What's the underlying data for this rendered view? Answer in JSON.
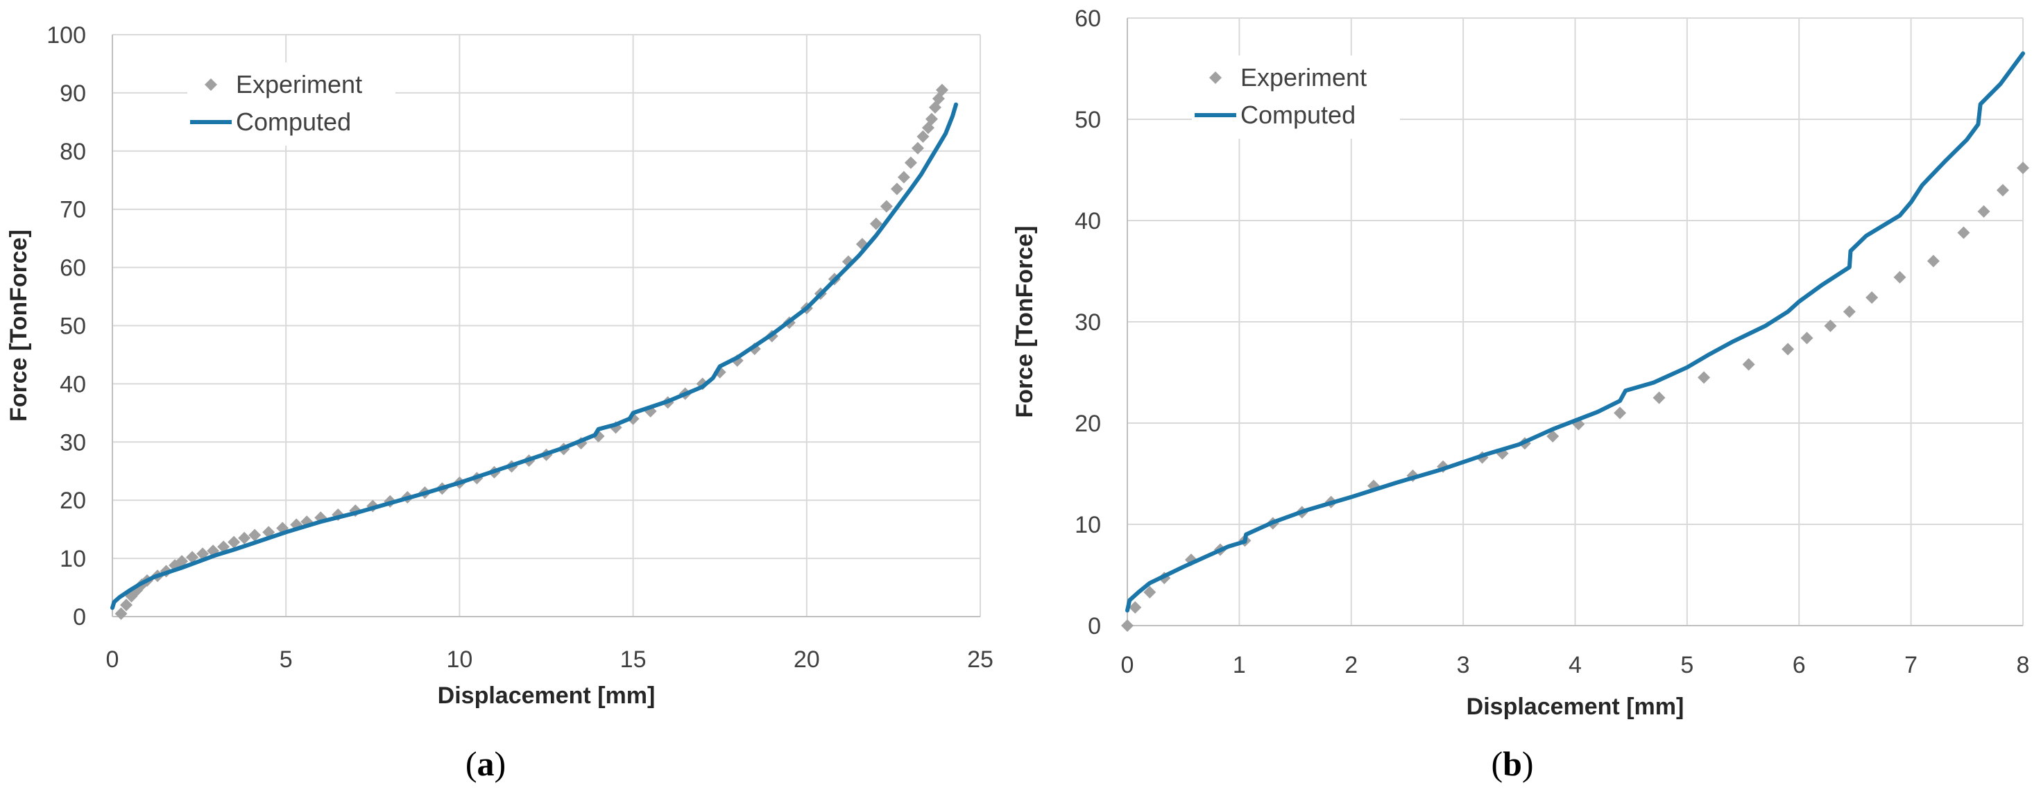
{
  "chart_data": [
    {
      "id": "a",
      "type": "line",
      "caption_open": "(",
      "caption_letter": "a",
      "caption_close": ")",
      "xlabel": "Displacement [mm]",
      "ylabel": "Force [TonForce]",
      "xlim": [
        0,
        25
      ],
      "ylim": [
        0,
        100
      ],
      "xticks": [
        0,
        5,
        10,
        15,
        20,
        25
      ],
      "yticks": [
        0,
        10,
        20,
        30,
        40,
        50,
        60,
        70,
        80,
        90,
        100
      ],
      "grid": true,
      "legend_position": "top-left",
      "series": [
        {
          "name": "Experiment",
          "style": "markers",
          "color": "#a0a0a0",
          "x": [
            0.25,
            0.4,
            0.55,
            0.7,
            0.85,
            1.0,
            1.3,
            1.55,
            1.8,
            2.0,
            2.3,
            2.6,
            2.9,
            3.2,
            3.5,
            3.8,
            4.1,
            4.5,
            4.9,
            5.3,
            5.6,
            6.0,
            6.5,
            7.0,
            7.5,
            8.0,
            8.5,
            9.0,
            9.5,
            10.0,
            10.5,
            11.0,
            11.5,
            12.0,
            12.5,
            13.0,
            13.5,
            14.0,
            14.5,
            15.0,
            15.5,
            16.0,
            16.5,
            17.0,
            17.5,
            18.0,
            18.5,
            19.0,
            19.5,
            20.0,
            20.4,
            20.8,
            21.2,
            21.6,
            22.0,
            22.3,
            22.6,
            22.8,
            23.0,
            23.2,
            23.35,
            23.5,
            23.6,
            23.7,
            23.8,
            23.9
          ],
          "y": [
            0.5,
            2,
            3.5,
            4.5,
            5.5,
            6.2,
            7,
            7.8,
            8.8,
            9.5,
            10.2,
            10.8,
            11.3,
            12,
            12.8,
            13.5,
            14,
            14.5,
            15.2,
            15.8,
            16.3,
            17,
            17.5,
            18.2,
            19,
            19.8,
            20.5,
            21.3,
            22,
            23,
            23.8,
            24.8,
            25.8,
            26.8,
            27.8,
            28.8,
            29.8,
            31,
            32.5,
            34,
            35.3,
            36.8,
            38.3,
            40,
            42,
            44,
            46,
            48.2,
            50.5,
            53,
            55.5,
            58,
            61,
            64,
            67.5,
            70.5,
            73.5,
            75.5,
            78,
            80.5,
            82.5,
            84,
            85.5,
            87.5,
            89,
            90.5
          ]
        },
        {
          "name": "Computed",
          "style": "line",
          "color": "#1a75a8",
          "x": [
            0,
            0.05,
            0.2,
            0.5,
            0.8,
            1.2,
            1.6,
            2.0,
            2.5,
            3.0,
            3.5,
            4.0,
            5.0,
            6.0,
            7.0,
            8.0,
            9.0,
            10.0,
            11.0,
            12.0,
            13.0,
            13.9,
            14.0,
            14.5,
            14.9,
            15.0,
            16.0,
            17.0,
            17.3,
            17.5,
            18.0,
            19.0,
            20.0,
            20.5,
            21.0,
            21.5,
            22.0,
            22.5,
            23.0,
            23.3,
            23.6,
            23.8,
            24.0,
            24.2,
            24.3
          ],
          "y": [
            1.5,
            2.5,
            3.3,
            4.5,
            5.6,
            6.8,
            7.6,
            8.4,
            9.5,
            10.6,
            11.5,
            12.5,
            14.5,
            16.3,
            17.8,
            19.5,
            21.2,
            23.0,
            25.0,
            27.0,
            29.0,
            31.2,
            32.2,
            33.0,
            34.0,
            35.0,
            37.0,
            39.5,
            41.0,
            43.0,
            44.5,
            48.5,
            53.0,
            56.0,
            59.0,
            62.0,
            65.5,
            69.5,
            73.5,
            76.0,
            79.0,
            81.0,
            83.0,
            86.0,
            88.0
          ]
        }
      ]
    },
    {
      "id": "b",
      "type": "line",
      "caption_open": "(",
      "caption_letter": "b",
      "caption_close": ")",
      "xlabel": "Displacement [mm]",
      "ylabel": "Force [TonForce]",
      "xlim": [
        0,
        8
      ],
      "ylim": [
        0,
        60
      ],
      "xticks": [
        0,
        1,
        2,
        3,
        4,
        5,
        6,
        7,
        8
      ],
      "yticks": [
        0,
        10,
        20,
        30,
        40,
        50,
        60
      ],
      "grid": true,
      "legend_position": "top-left",
      "series": [
        {
          "name": "Experiment",
          "style": "markers",
          "color": "#a0a0a0",
          "x": [
            0,
            0.07,
            0.2,
            0.33,
            0.57,
            0.83,
            1.05,
            1.3,
            1.56,
            1.82,
            2.2,
            2.55,
            2.82,
            3.17,
            3.35,
            3.55,
            3.8,
            4.03,
            4.4,
            4.75,
            5.15,
            5.55,
            5.9,
            6.07,
            6.28,
            6.45,
            6.65,
            6.9,
            7.2,
            7.47,
            7.65,
            7.82,
            8.0
          ],
          "y": [
            0,
            1.8,
            3.3,
            4.7,
            6.5,
            7.5,
            8.4,
            10.1,
            11.2,
            12.2,
            13.8,
            14.8,
            15.7,
            16.6,
            17.0,
            18.0,
            18.7,
            19.9,
            21.0,
            22.5,
            24.5,
            25.8,
            27.3,
            28.4,
            29.6,
            31.0,
            32.4,
            34.4,
            36.0,
            38.8,
            40.9,
            43.0,
            45.2
          ]
        },
        {
          "name": "Computed",
          "style": "line",
          "color": "#1a75a8",
          "x": [
            0,
            0.02,
            0.1,
            0.2,
            0.35,
            0.5,
            0.7,
            0.9,
            1.05,
            1.06,
            1.3,
            1.6,
            2.0,
            2.4,
            2.8,
            3.2,
            3.5,
            3.8,
            4.2,
            4.4,
            4.45,
            4.7,
            5.0,
            5.2,
            5.4,
            5.7,
            5.9,
            6.0,
            6.2,
            6.45,
            6.46,
            6.6,
            6.9,
            7.0,
            7.1,
            7.3,
            7.5,
            7.6,
            7.62,
            7.8,
            8.0
          ],
          "y": [
            1.5,
            2.5,
            3.3,
            4.2,
            5.0,
            5.8,
            6.8,
            7.8,
            8.3,
            9.0,
            10.2,
            11.4,
            12.7,
            14.1,
            15.4,
            16.9,
            17.9,
            19.4,
            21.1,
            22.2,
            23.2,
            24.0,
            25.5,
            26.8,
            28.0,
            29.6,
            31.0,
            32.0,
            33.6,
            35.4,
            37.0,
            38.5,
            40.5,
            41.8,
            43.5,
            45.8,
            48.0,
            49.5,
            51.5,
            53.5,
            56.5
          ]
        }
      ]
    }
  ]
}
